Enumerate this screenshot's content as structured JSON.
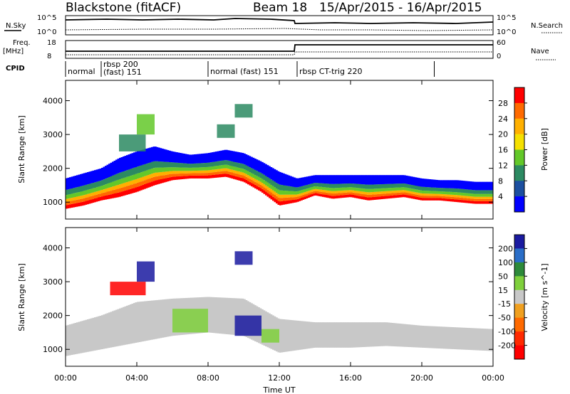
{
  "header": {
    "station": "Blackstone (fitACF)",
    "beam": "Beam 18",
    "dates": "15/Apr/2015 - 16/Apr/2015"
  },
  "top_panels": {
    "nsky_label": "N.Sky",
    "nsky_top": "10^5",
    "nsky_bot": "10^0",
    "nsearch_label": "N.Search",
    "nsearch_top": "10^5",
    "nsearch_bot": "10^0",
    "freq_label": "Freq.",
    "freq_unit": "[MHz]",
    "freq_top": "18",
    "freq_bot": "8",
    "nave_label": "Nave",
    "nave_top": "60",
    "nave_bot": "0",
    "cpid_label": "CPID",
    "cpid_segments": [
      {
        "label": "normal",
        "start": 0,
        "end": 2
      },
      {
        "label": "rbsp 200",
        "sub": "(fast) 151",
        "start": 2,
        "end": 8
      },
      {
        "label": "normal (fast) 151",
        "start": 8,
        "end": 13
      },
      {
        "label": "rbsp CT-trig 220",
        "start": 13,
        "end": 20.7
      }
    ]
  },
  "chart_data": [
    {
      "type": "heatmap",
      "name": "power",
      "ylabel": "Slant Range [km]",
      "yticks": [
        1000,
        2000,
        3000,
        4000
      ],
      "ylim": [
        500,
        4600
      ],
      "xlim": [
        0,
        24
      ],
      "xticks": [
        "00:00",
        "04:00",
        "08:00",
        "12:00",
        "16:00",
        "20:00",
        "00:00"
      ],
      "colorbar": {
        "label": "Power [dB]",
        "ticks": [
          "28",
          "24",
          "20",
          "16",
          "12",
          "8",
          "4"
        ],
        "colors": [
          "#ff0000",
          "#ff6a00",
          "#ffb000",
          "#f5e000",
          "#63c829",
          "#2c8a62",
          "#1c4fa0",
          "#0000ff"
        ]
      },
      "band": [
        {
          "t": 0,
          "lo": 800,
          "hi": 1700
        },
        {
          "t": 1,
          "lo": 900,
          "hi": 1850
        },
        {
          "t": 2,
          "lo": 1050,
          "hi": 2000
        },
        {
          "t": 3,
          "lo": 1150,
          "hi": 2300
        },
        {
          "t": 4,
          "lo": 1300,
          "hi": 2500
        },
        {
          "t": 5,
          "lo": 1500,
          "hi": 2650
        },
        {
          "t": 6,
          "lo": 1650,
          "hi": 2500
        },
        {
          "t": 7,
          "lo": 1700,
          "hi": 2400
        },
        {
          "t": 8,
          "lo": 1700,
          "hi": 2450
        },
        {
          "t": 9,
          "lo": 1750,
          "hi": 2550
        },
        {
          "t": 10,
          "lo": 1600,
          "hi": 2450
        },
        {
          "t": 11,
          "lo": 1300,
          "hi": 2200
        },
        {
          "t": 12,
          "lo": 900,
          "hi": 1900
        },
        {
          "t": 13,
          "lo": 1000,
          "hi": 1700
        },
        {
          "t": 14,
          "lo": 1200,
          "hi": 1800
        },
        {
          "t": 15,
          "lo": 1100,
          "hi": 1800
        },
        {
          "t": 16,
          "lo": 1150,
          "hi": 1800
        },
        {
          "t": 17,
          "lo": 1050,
          "hi": 1800
        },
        {
          "t": 18,
          "lo": 1100,
          "hi": 1800
        },
        {
          "t": 19,
          "lo": 1150,
          "hi": 1800
        },
        {
          "t": 20,
          "lo": 1050,
          "hi": 1700
        },
        {
          "t": 21,
          "lo": 1050,
          "hi": 1650
        },
        {
          "t": 22,
          "lo": 1000,
          "hi": 1650
        },
        {
          "t": 23,
          "lo": 950,
          "hi": 1600
        },
        {
          "t": 24,
          "lo": 950,
          "hi": 1600
        }
      ],
      "patches": [
        {
          "t0": 3.0,
          "t1": 4.5,
          "lo": 2500,
          "hi": 3000,
          "value": 8
        },
        {
          "t0": 4.0,
          "t1": 5.0,
          "lo": 3000,
          "hi": 3600,
          "value": 10
        },
        {
          "t0": 9.5,
          "t1": 10.5,
          "lo": 3500,
          "hi": 3900,
          "value": 8
        },
        {
          "t0": 8.5,
          "t1": 9.5,
          "lo": 2900,
          "hi": 3300,
          "value": 6
        }
      ]
    },
    {
      "type": "heatmap",
      "name": "velocity",
      "ylabel": "Slant Range [km]",
      "yticks": [
        1000,
        2000,
        3000,
        4000
      ],
      "ylim": [
        500,
        4600
      ],
      "xlim": [
        0,
        24
      ],
      "xticks": [
        "00:00",
        "04:00",
        "08:00",
        "12:00",
        "16:00",
        "20:00",
        "00:00"
      ],
      "colorbar": {
        "label": "Velocity [m s^-1]",
        "ticks": [
          "200",
          "100",
          "50",
          "15",
          "-15",
          "-50",
          "-100",
          "-200"
        ],
        "colors": [
          "#1a1aa0",
          "#2a6ec8",
          "#2d8a3a",
          "#7fd03c",
          "#c8c8c8",
          "#f0a020",
          "#ff6a00",
          "#ff2a00",
          "#ff0000"
        ]
      },
      "band": [
        {
          "t": 0,
          "lo": 800,
          "hi": 1700
        },
        {
          "t": 2,
          "lo": 1000,
          "hi": 2000
        },
        {
          "t": 4,
          "lo": 1200,
          "hi": 2400
        },
        {
          "t": 6,
          "lo": 1400,
          "hi": 2500
        },
        {
          "t": 8,
          "lo": 1500,
          "hi": 2550
        },
        {
          "t": 10,
          "lo": 1400,
          "hi": 2500
        },
        {
          "t": 12,
          "lo": 900,
          "hi": 1900
        },
        {
          "t": 14,
          "lo": 1050,
          "hi": 1800
        },
        {
          "t": 16,
          "lo": 1050,
          "hi": 1800
        },
        {
          "t": 18,
          "lo": 1100,
          "hi": 1800
        },
        {
          "t": 20,
          "lo": 1050,
          "hi": 1700
        },
        {
          "t": 22,
          "lo": 1000,
          "hi": 1650
        },
        {
          "t": 24,
          "lo": 950,
          "hi": 1600
        }
      ],
      "patches": [
        {
          "t0": 2.5,
          "t1": 4.5,
          "lo": 2600,
          "hi": 3000,
          "value": -200
        },
        {
          "t0": 4.0,
          "t1": 5.0,
          "lo": 3000,
          "hi": 3600,
          "value": 200
        },
        {
          "t0": 6.0,
          "t1": 8.0,
          "lo": 1500,
          "hi": 2200,
          "value": 40
        },
        {
          "t0": 9.5,
          "t1": 11.0,
          "lo": 1400,
          "hi": 2000,
          "value": 200
        },
        {
          "t0": 9.5,
          "t1": 10.5,
          "lo": 3500,
          "hi": 3900,
          "value": 200
        },
        {
          "t0": 11.0,
          "t1": 12.0,
          "lo": 1200,
          "hi": 1600,
          "value": 40
        }
      ]
    }
  ],
  "footer": {
    "xlabel": "Time UT"
  }
}
